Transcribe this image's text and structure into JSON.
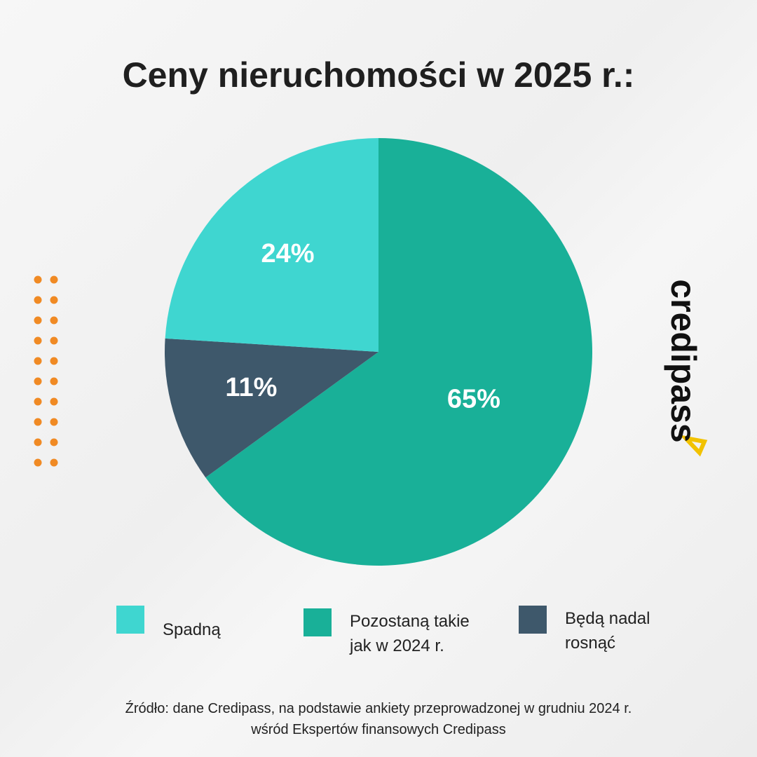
{
  "chart_data": {
    "type": "pie",
    "title": "Ceny nieruchomości w 2025 r.:",
    "categories": [
      "Spadną",
      "Pozostaną takie jak w 2024 r.",
      "Będą nadal rosnąć"
    ],
    "values": [
      24,
      65,
      11
    ],
    "value_labels": [
      "24%",
      "65%",
      "11%"
    ],
    "colors": [
      "#3fd6d0",
      "#19b098",
      "#3e586b"
    ]
  },
  "source": [
    "Źródło: dane Credipass, na podstawie ankiety przeprowadzonej w grudniu 2024 r.",
    "wśród Ekspertów finansowych Credipass"
  ],
  "logo": "credipass"
}
